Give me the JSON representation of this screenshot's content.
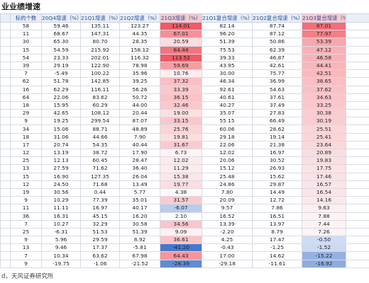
{
  "title": "业业绩增速",
  "table": {
    "header": [
      "标的个数",
      "20Q4增速（%）",
      "21Q1增速（%）",
      "21Q2增速（%）",
      "21Q3增速（%）",
      "21Q1复合增速（%）",
      "21Q2复合增速（%）",
      "21Q3复合增速（%）"
    ],
    "rows": [
      [
        58,
        59.46,
        135.11,
        123.27,
        114.01,
        82.14,
        87.74,
        87.01
      ],
      [
        11,
        68.67,
        147.31,
        44.35,
        67.01,
        96.2,
        87.12,
        77.97
      ],
      [
        30,
        65.3,
        80.7,
        28.35,
        20.59,
        51.39,
        50.86,
        53.39
      ],
      [
        15,
        54.59,
        215.92,
        158.12,
        84.44,
        75.53,
        62.39,
        47.12
      ],
      [
        54,
        23.33,
        202.01,
        116.32,
        113.52,
        39.33,
        46.87,
        46.58
      ],
      [
        39,
        29.19,
        122.9,
        78.98,
        59.69,
        43.95,
        42.61,
        44.41
      ],
      [
        7,
        -5.49,
        100.22,
        35.96,
        10.76,
        30.0,
        75.77,
        42.51
      ],
      [
        62,
        51.78,
        142.85,
        39.25,
        37.32,
        46.34,
        36.99,
        38.65
      ],
      [
        16,
        62.29,
        116.11,
        56.26,
        33.39,
        92.61,
        54.63,
        37.62
      ],
      [
        64,
        22.06,
        83.62,
        50.72,
        36.15,
        40.61,
        37.61,
        34.63
      ],
      [
        18,
        15.95,
        60.29,
        44.0,
        32.46,
        40.27,
        37.49,
        33.25
      ],
      [
        29,
        42.65,
        108.12,
        20.44,
        19.0,
        35.07,
        27.83,
        30.38
      ],
      [
        9,
        19.25,
        299.54,
        87.07,
        33.15,
        55.15,
        66.49,
        30.19
      ],
      [
        34,
        15.06,
        88.71,
        48.89,
        25.76,
        60.06,
        28.62,
        25.51
      ],
      [
        18,
        31.06,
        44.66,
        7.9,
        19.81,
        29.18,
        19.14,
        25.41
      ],
      [
        17,
        20.74,
        54.35,
        40.44,
        31.67,
        22.06,
        21.38,
        23.64
      ],
      [
        12,
        13.19,
        38.72,
        17.9,
        6.73,
        12.02,
        16.97,
        20.89
      ],
      [
        25,
        12.13,
        60.45,
        28.47,
        12.02,
        20.06,
        30.52,
        19.83
      ],
      [
        13,
        27.59,
        71.62,
        36.4,
        11.29,
        15.12,
        26.93,
        17.75
      ],
      [
        15,
        16.9,
        127.35,
        26.04,
        15.38,
        25.48,
        15.62,
        17.46
      ],
      [
        12,
        24.5,
        71.68,
        13.49,
        19.77,
        24.86,
        29.87,
        16.57
      ],
      [
        19,
        30.56,
        0.44,
        5.77,
        4.38,
        7.8,
        14.49,
        16.54
      ],
      [
        9,
        10.29,
        77.39,
        35.01,
        31.57,
        20.09,
        12.72,
        14.16
      ],
      [
        11,
        11.11,
        16.97,
        40.17,
        -6.07,
        9.57,
        7.86,
        9.63
      ],
      [
        36,
        16.31,
        45.15,
        16.2,
        2.1,
        16.52,
        16.51,
        7.88
      ],
      [
        7,
        10.27,
        32.29,
        30.58,
        34.56,
        13.39,
        13.97,
        7.44
      ],
      [
        25,
        -6.31,
        51.53,
        51.39,
        9.09,
        -2.2,
        8.79,
        7.26
      ],
      [
        9,
        5.96,
        29.59,
        8.92,
        36.61,
        4.25,
        17.47,
        -0.5
      ],
      [
        13,
        9.46,
        17.37,
        -5.81,
        -41.2,
        -0.43,
        -1.25,
        -1.52
      ],
      [
        7,
        10.34,
        63.62,
        67.98,
        64.43,
        17.0,
        14.62,
        -15.22
      ],
      [
        9,
        -19.75,
        -1.06,
        -21.52,
        -28.39,
        -29.18,
        -11.61,
        -16.92
      ]
    ]
  },
  "heat_columns": [
    4,
    7
  ],
  "footer": "d，天风证券研究所"
}
